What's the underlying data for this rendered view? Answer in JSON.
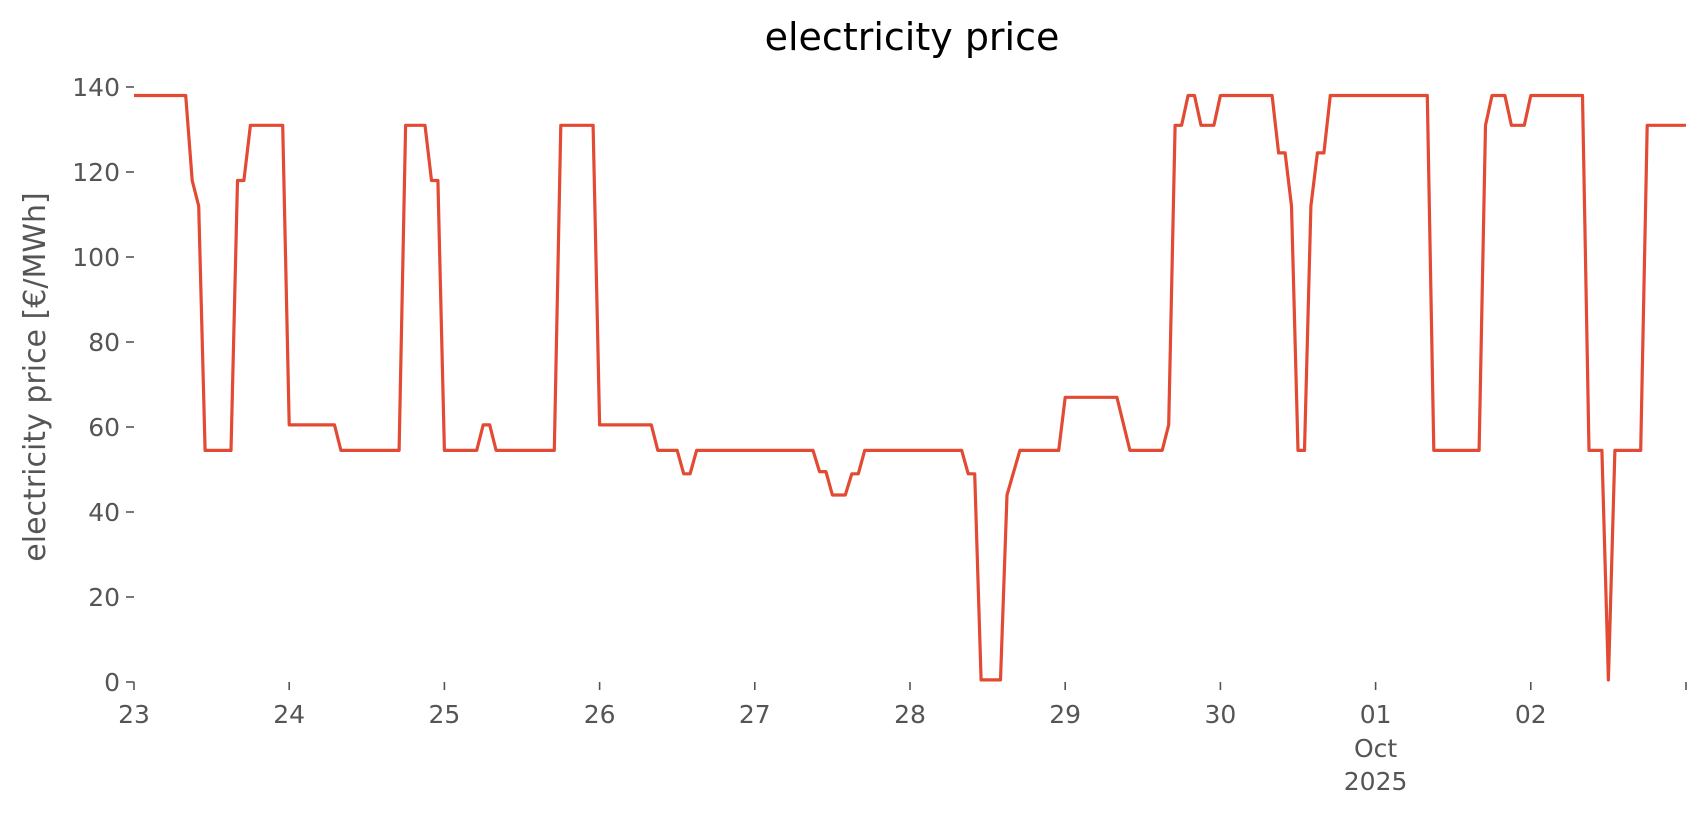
{
  "chart_data": {
    "type": "line",
    "title": "electricity price",
    "xlabel": "",
    "ylabel": "electricity price [€/MWh]",
    "xlim": [
      "2025-09-23",
      "2025-10-03"
    ],
    "ylim": [
      0,
      140
    ],
    "grid": false,
    "yticks": [
      0,
      20,
      40,
      60,
      80,
      100,
      120,
      140
    ],
    "xticks": [
      {
        "date": "2025-09-23",
        "label": "23"
      },
      {
        "date": "2025-09-24",
        "label": "24"
      },
      {
        "date": "2025-09-25",
        "label": "25"
      },
      {
        "date": "2025-09-26",
        "label": "26"
      },
      {
        "date": "2025-09-27",
        "label": "27"
      },
      {
        "date": "2025-09-28",
        "label": "28"
      },
      {
        "date": "2025-09-29",
        "label": "29"
      },
      {
        "date": "2025-09-30",
        "label": "30"
      },
      {
        "date": "2025-10-01",
        "label": "01",
        "sub1": "Oct",
        "sub2": "2025"
      },
      {
        "date": "2025-10-02",
        "label": "02"
      },
      {
        "date": "2025-10-03",
        "label": ""
      }
    ],
    "series": [
      {
        "color": "#e24a33",
        "points": [
          [
            "2025-09-23 00:00",
            138
          ],
          [
            "2025-09-23 08:00",
            138
          ],
          [
            "2025-09-23 09:00",
            118
          ],
          [
            "2025-09-23 10:00",
            112
          ],
          [
            "2025-09-23 11:00",
            54.5
          ],
          [
            "2025-09-23 15:00",
            54.5
          ],
          [
            "2025-09-23 16:00",
            118
          ],
          [
            "2025-09-23 17:00",
            118
          ],
          [
            "2025-09-23 18:00",
            131
          ],
          [
            "2025-09-23 23:00",
            131
          ],
          [
            "2025-09-24 00:00",
            60.5
          ],
          [
            "2025-09-24 07:00",
            60.5
          ],
          [
            "2025-09-24 08:00",
            54.5
          ],
          [
            "2025-09-24 17:00",
            54.5
          ],
          [
            "2025-09-24 18:00",
            131
          ],
          [
            "2025-09-24 21:00",
            131
          ],
          [
            "2025-09-24 22:00",
            118
          ],
          [
            "2025-09-24 23:00",
            118
          ],
          [
            "2025-09-25 00:00",
            54.5
          ],
          [
            "2025-09-25 05:00",
            54.5
          ],
          [
            "2025-09-25 06:00",
            60.5
          ],
          [
            "2025-09-25 07:00",
            60.5
          ],
          [
            "2025-09-25 08:00",
            54.5
          ],
          [
            "2025-09-25 17:00",
            54.5
          ],
          [
            "2025-09-25 18:00",
            131
          ],
          [
            "2025-09-25 23:00",
            131
          ],
          [
            "2025-09-26 00:00",
            60.5
          ],
          [
            "2025-09-26 08:00",
            60.5
          ],
          [
            "2025-09-26 09:00",
            54.5
          ],
          [
            "2025-09-26 12:00",
            54.5
          ],
          [
            "2025-09-26 13:00",
            49
          ],
          [
            "2025-09-26 14:00",
            49
          ],
          [
            "2025-09-26 15:00",
            54.5
          ],
          [
            "2025-09-27 09:00",
            54.5
          ],
          [
            "2025-09-27 10:00",
            49.5
          ],
          [
            "2025-09-27 11:00",
            49.5
          ],
          [
            "2025-09-27 12:00",
            44
          ],
          [
            "2025-09-27 14:00",
            44
          ],
          [
            "2025-09-27 15:00",
            49
          ],
          [
            "2025-09-27 16:00",
            49
          ],
          [
            "2025-09-27 17:00",
            54.5
          ],
          [
            "2025-09-28 08:00",
            54.5
          ],
          [
            "2025-09-28 09:00",
            49
          ],
          [
            "2025-09-28 10:00",
            49
          ],
          [
            "2025-09-28 11:00",
            0.5
          ],
          [
            "2025-09-28 14:00",
            0.5
          ],
          [
            "2025-09-28 15:00",
            44
          ],
          [
            "2025-09-28 17:00",
            54.5
          ],
          [
            "2025-09-28 23:00",
            54.5
          ],
          [
            "2025-09-29 00:00",
            67
          ],
          [
            "2025-09-29 08:00",
            67
          ],
          [
            "2025-09-29 10:00",
            54.5
          ],
          [
            "2025-09-29 15:00",
            54.5
          ],
          [
            "2025-09-29 16:00",
            60.5
          ],
          [
            "2025-09-29 17:00",
            131
          ],
          [
            "2025-09-29 18:00",
            131
          ],
          [
            "2025-09-29 19:00",
            138
          ],
          [
            "2025-09-29 20:00",
            138
          ],
          [
            "2025-09-29 21:00",
            131
          ],
          [
            "2025-09-29 23:00",
            131
          ],
          [
            "2025-09-30 00:00",
            138
          ],
          [
            "2025-09-30 08:00",
            138
          ],
          [
            "2025-09-30 09:00",
            124.5
          ],
          [
            "2025-09-30 10:00",
            124.5
          ],
          [
            "2025-09-30 11:00",
            112
          ],
          [
            "2025-09-30 12:00",
            54.5
          ],
          [
            "2025-09-30 13:00",
            54.5
          ],
          [
            "2025-09-30 14:00",
            112
          ],
          [
            "2025-09-30 15:00",
            124.5
          ],
          [
            "2025-09-30 16:00",
            124.5
          ],
          [
            "2025-09-30 17:00",
            138
          ],
          [
            "2025-10-01 08:00",
            138
          ],
          [
            "2025-10-01 09:00",
            54.5
          ],
          [
            "2025-10-01 16:00",
            54.5
          ],
          [
            "2025-10-01 17:00",
            131
          ],
          [
            "2025-10-01 18:00",
            138
          ],
          [
            "2025-10-01 20:00",
            138
          ],
          [
            "2025-10-01 21:00",
            131
          ],
          [
            "2025-10-01 23:00",
            131
          ],
          [
            "2025-10-02 00:00",
            138
          ],
          [
            "2025-10-02 08:00",
            138
          ],
          [
            "2025-10-02 09:00",
            54.5
          ],
          [
            "2025-10-02 11:00",
            54.5
          ],
          [
            "2025-10-02 12:00",
            0.5
          ],
          [
            "2025-10-02 13:00",
            54.5
          ],
          [
            "2025-10-02 17:00",
            54.5
          ],
          [
            "2025-10-02 18:00",
            131
          ],
          [
            "2025-10-02 23:59",
            131
          ]
        ]
      }
    ]
  }
}
